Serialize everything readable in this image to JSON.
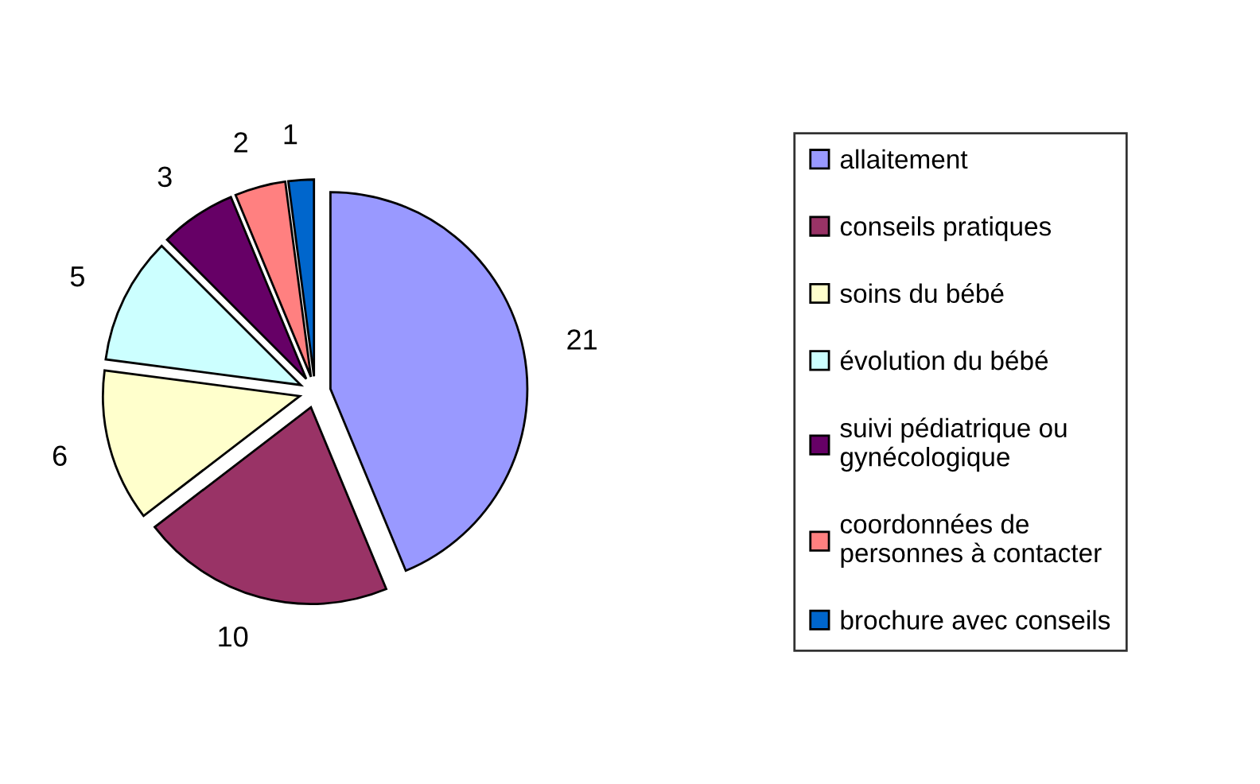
{
  "chart_data": {
    "type": "pie",
    "categories": [
      "allaitement",
      "conseils pratiques",
      "soins du bébé",
      "évolution du bébé",
      "suivi pédiatrique ou\ngynécologique",
      "coordonnées de\npersonnes à contacter",
      "brochure avec conseils"
    ],
    "values": [
      21,
      10,
      6,
      5,
      3,
      2,
      1
    ],
    "colors": [
      "#9999ff",
      "#993366",
      "#ffffcc",
      "#ccffff",
      "#660066",
      "#ff8080",
      "#0066cc"
    ],
    "data_labels": true,
    "legend": "right"
  }
}
